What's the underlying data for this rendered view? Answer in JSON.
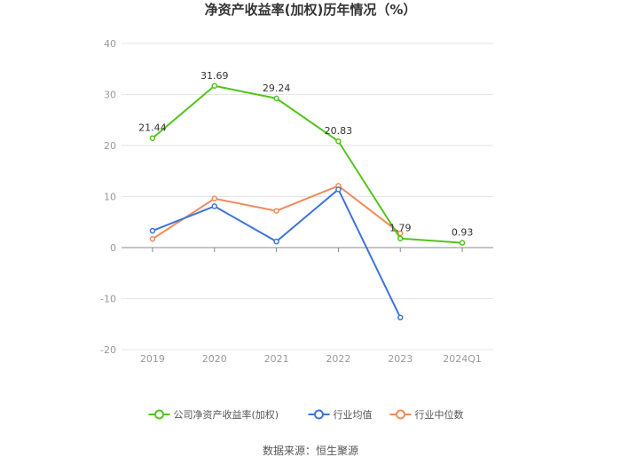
{
  "chart_data": {
    "type": "line",
    "title": "净资产收益率(加权)历年情况（%）",
    "categories": [
      "2019",
      "2020",
      "2021",
      "2022",
      "2023",
      "2024Q1"
    ],
    "ylim": [
      -20,
      40
    ],
    "yticks": [
      -20,
      -10,
      0,
      10,
      20,
      30,
      40
    ],
    "grid": true,
    "legend_position": "bottom",
    "series": [
      {
        "name": "公司净资产收益率(加权)",
        "color": "#52c41a",
        "values": [
          21.44,
          31.69,
          29.24,
          20.83,
          1.79,
          0.93
        ],
        "show_labels": true
      },
      {
        "name": "行业均值",
        "color": "#3d74d9",
        "values": [
          3.3,
          8.1,
          1.2,
          11.4,
          -13.7,
          null
        ],
        "show_labels": false
      },
      {
        "name": "行业中位数",
        "color": "#f08a5d",
        "values": [
          1.7,
          9.6,
          7.2,
          12.1,
          2.8,
          null
        ],
        "show_labels": false
      }
    ],
    "data_labels": [
      "21.44",
      "31.69",
      "29.24",
      "20.83",
      "1.79",
      "0.93"
    ]
  },
  "source_text": "数据来源：恒生聚源"
}
